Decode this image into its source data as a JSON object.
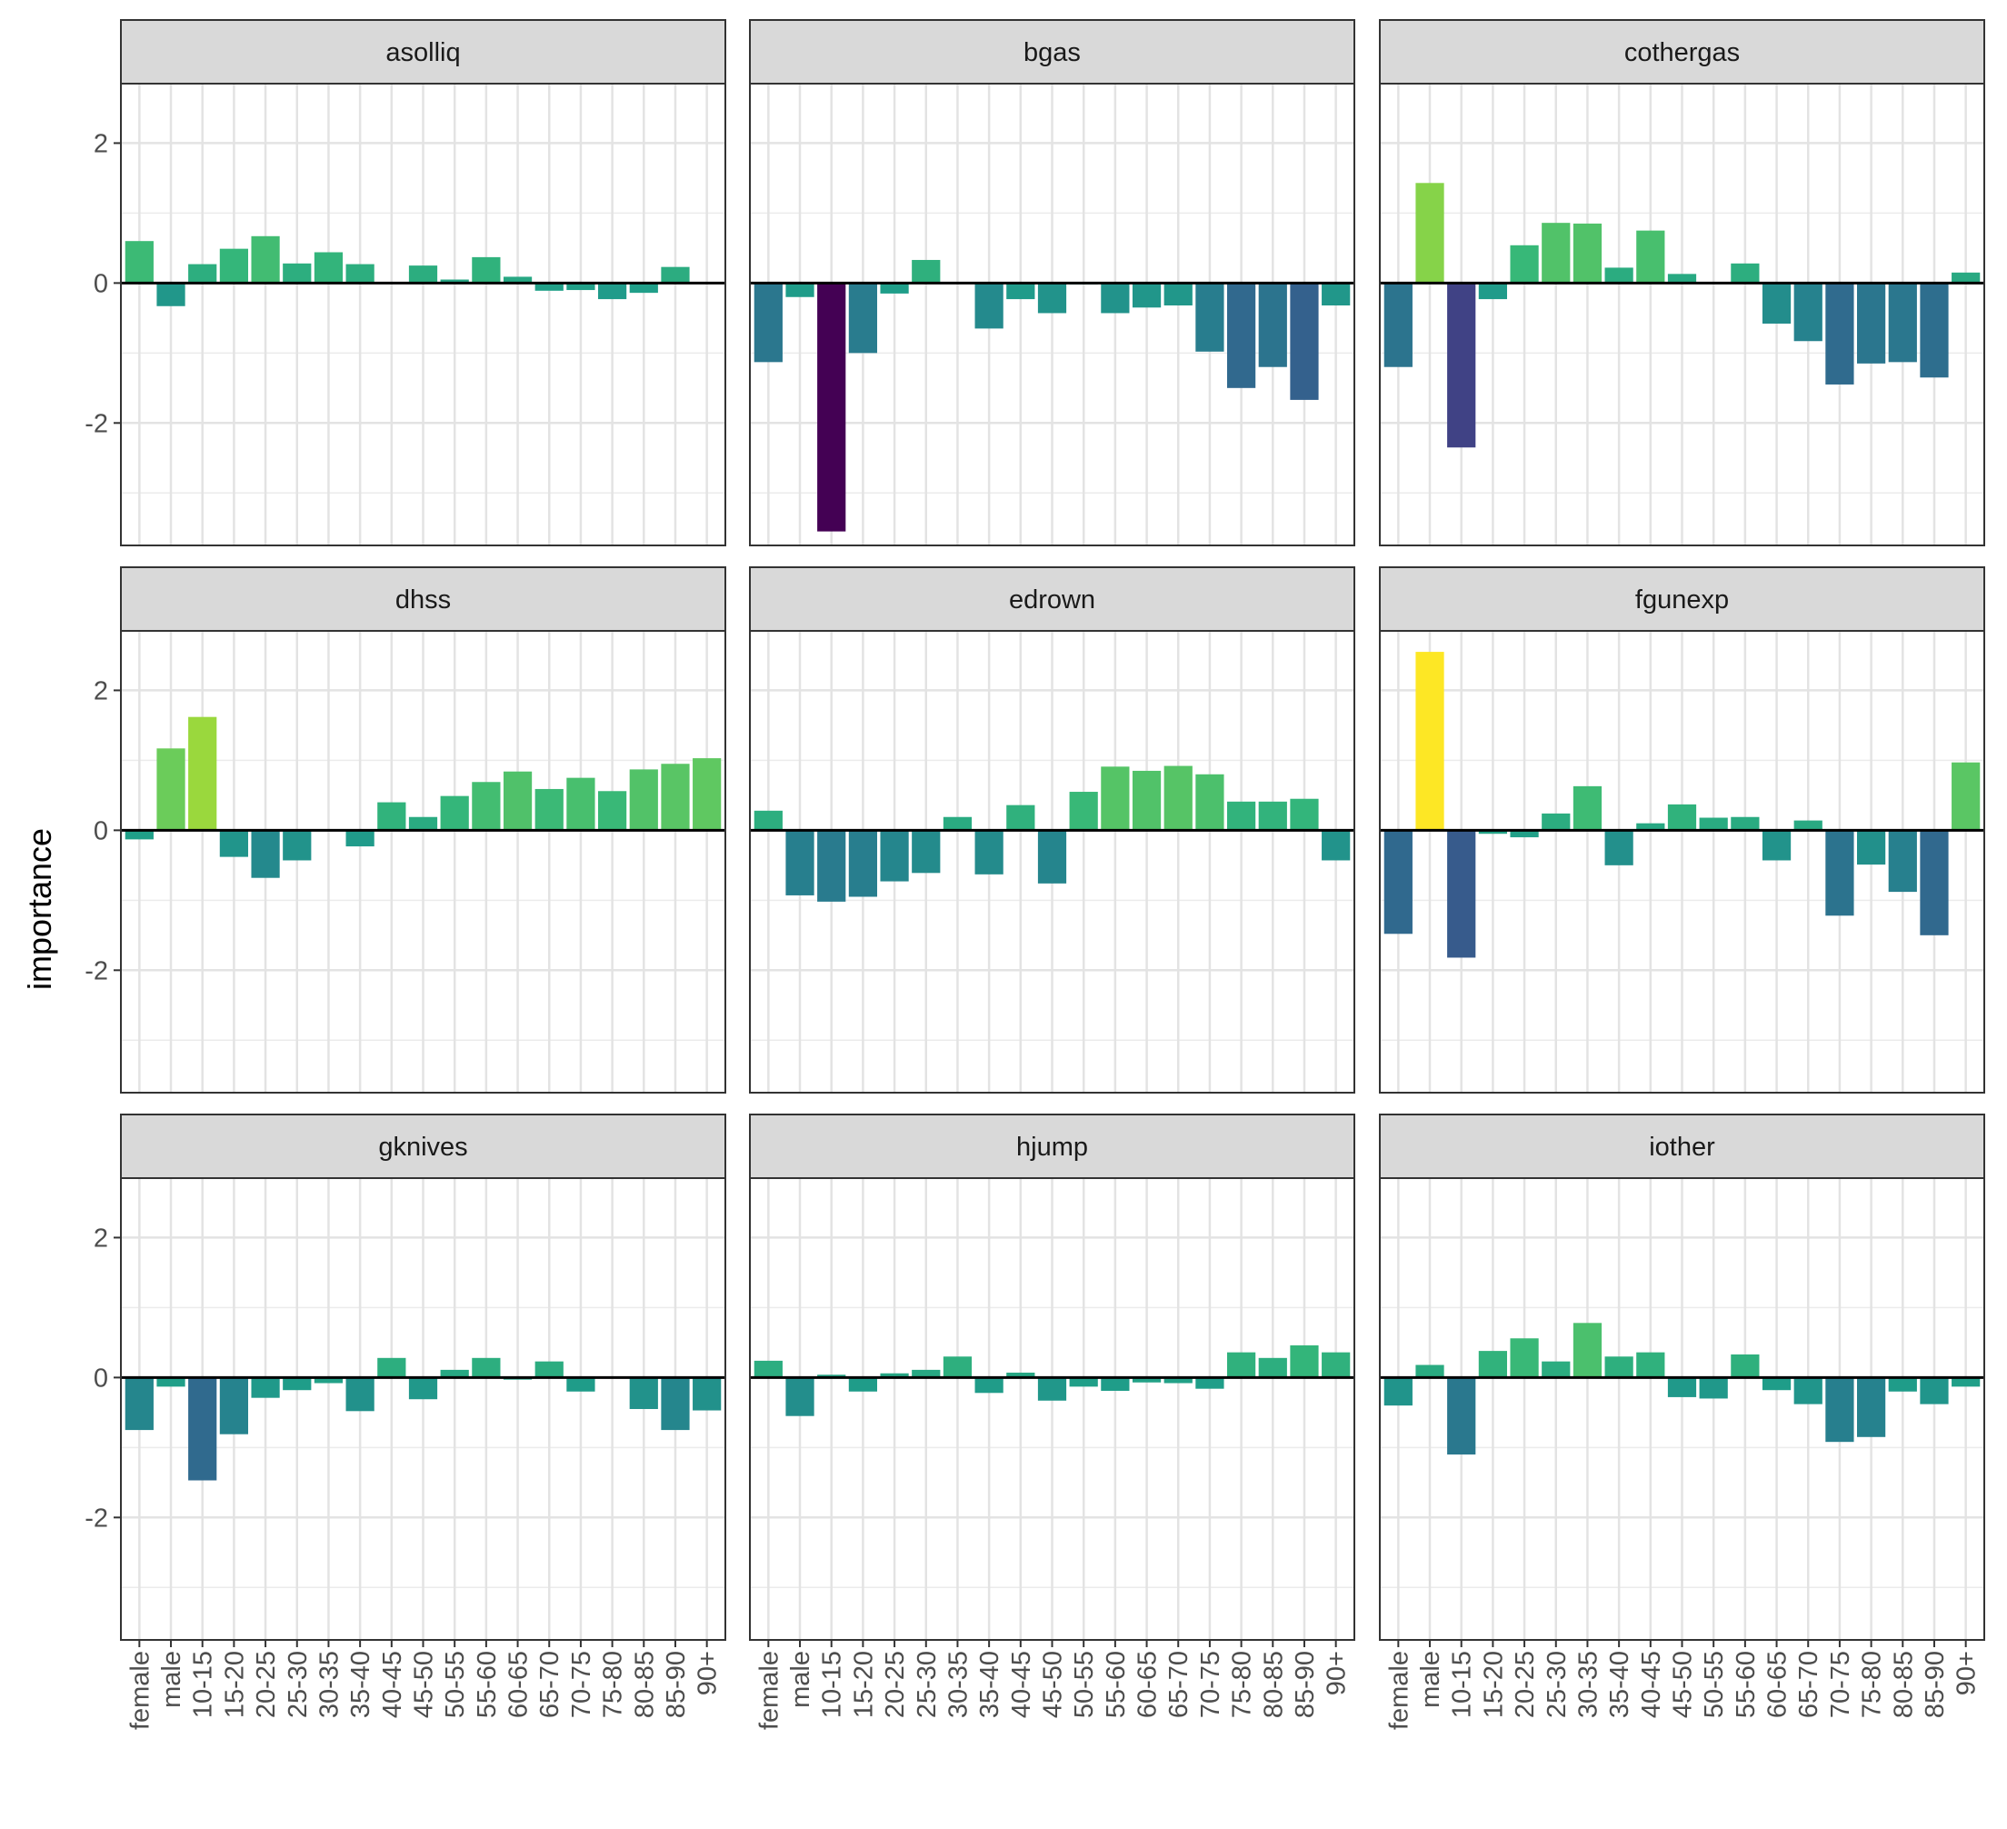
{
  "chart_data": {
    "type": "bar",
    "ylabel": "importance",
    "xlabel": "",
    "ylim": [
      -3.75,
      2.85
    ],
    "y_ticks": [
      -2,
      0,
      2
    ],
    "y_tick_labels": [
      "-2",
      "0",
      "2"
    ],
    "grid": true,
    "legend": "none",
    "categories": [
      "female",
      "male",
      "10-15",
      "15-20",
      "20-25",
      "25-30",
      "30-35",
      "35-40",
      "40-45",
      "45-50",
      "50-55",
      "55-60",
      "60-65",
      "65-70",
      "70-75",
      "75-80",
      "80-85",
      "85-90",
      "90+"
    ],
    "color_scale": {
      "name": "viridis",
      "min": -3.55,
      "max": 2.55
    },
    "panels": [
      {
        "title": "asolliq",
        "values": [
          0.6,
          -0.33,
          0.27,
          0.49,
          0.67,
          0.28,
          0.44,
          0.27,
          0.0,
          0.25,
          0.05,
          0.37,
          0.09,
          -0.11,
          -0.1,
          -0.23,
          -0.14,
          0.23,
          0.0
        ]
      },
      {
        "title": "bgas",
        "values": [
          -1.13,
          -0.2,
          -3.55,
          -1.0,
          -0.15,
          0.33,
          0.0,
          -0.65,
          -0.23,
          -0.43,
          -0.02,
          -0.43,
          -0.35,
          -0.32,
          -0.98,
          -1.5,
          -1.2,
          -1.67,
          -0.32
        ]
      },
      {
        "title": "cothergas",
        "values": [
          -1.2,
          1.43,
          -2.35,
          -0.23,
          0.54,
          0.86,
          0.85,
          0.22,
          0.75,
          0.13,
          0.0,
          0.28,
          -0.58,
          -0.83,
          -1.45,
          -1.15,
          -1.13,
          -1.35,
          0.15
        ]
      },
      {
        "title": "dhss",
        "values": [
          -0.13,
          1.17,
          1.62,
          -0.38,
          -0.68,
          -0.43,
          0.0,
          -0.23,
          0.4,
          0.19,
          0.49,
          0.69,
          0.84,
          0.59,
          0.75,
          0.56,
          0.87,
          0.95,
          1.03
        ]
      },
      {
        "title": "edrown",
        "values": [
          0.28,
          -0.93,
          -1.02,
          -0.95,
          -0.73,
          -0.61,
          0.19,
          -0.63,
          0.36,
          -0.76,
          0.55,
          0.91,
          0.85,
          0.92,
          0.8,
          0.41,
          0.41,
          0.45,
          -0.43
        ]
      },
      {
        "title": "fgunexp",
        "values": [
          -1.48,
          2.55,
          -1.82,
          -0.05,
          -0.1,
          0.24,
          0.63,
          -0.5,
          0.1,
          0.37,
          0.18,
          0.19,
          -0.43,
          0.14,
          -1.22,
          -0.49,
          -0.88,
          -1.5,
          0.97
        ]
      },
      {
        "title": "gknives",
        "values": [
          -0.75,
          -0.13,
          -1.47,
          -0.81,
          -0.29,
          -0.18,
          -0.08,
          -0.48,
          0.28,
          -0.31,
          0.11,
          0.28,
          -0.03,
          0.23,
          -0.2,
          0.0,
          -0.45,
          -0.75,
          -0.47
        ]
      },
      {
        "title": "hjump",
        "values": [
          0.24,
          -0.55,
          0.04,
          -0.2,
          0.06,
          0.11,
          0.3,
          -0.22,
          0.07,
          -0.33,
          -0.13,
          -0.19,
          -0.07,
          -0.08,
          -0.16,
          0.36,
          0.28,
          0.46,
          0.36
        ]
      },
      {
        "title": "iother",
        "values": [
          -0.4,
          0.18,
          -1.1,
          0.38,
          0.56,
          0.23,
          0.78,
          0.3,
          0.36,
          -0.28,
          -0.3,
          0.33,
          -0.18,
          -0.38,
          -0.92,
          -0.85,
          -0.2,
          -0.38,
          -0.13
        ]
      }
    ]
  }
}
